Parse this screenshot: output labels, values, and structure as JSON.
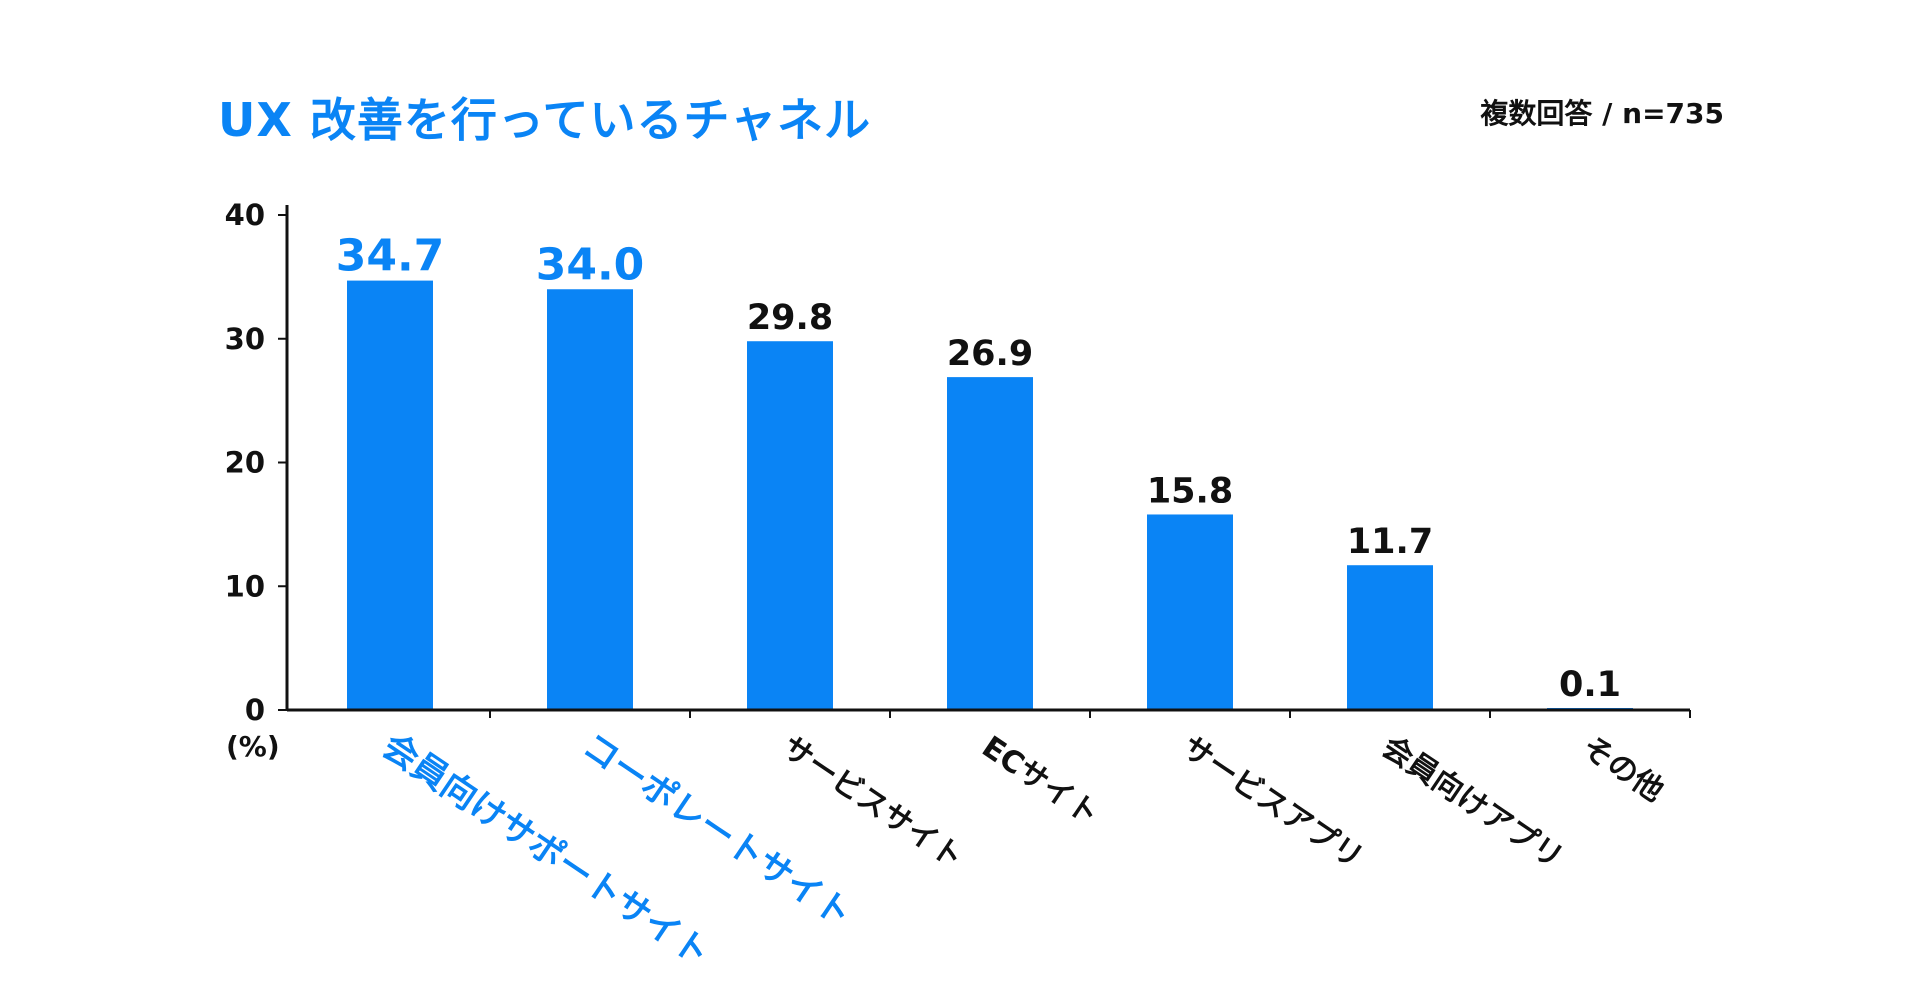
{
  "title": "UX 改善を行っているチャネル",
  "note": "複数回答 / n=735",
  "unit_label": "(%)",
  "colors": {
    "bar": "#0a84f5",
    "highlight": "#0a84f5",
    "text": "#111111",
    "axis": "#111111"
  },
  "chart_data": {
    "type": "bar",
    "title": "UX 改善を行っているチャネル",
    "categories": [
      "会員向けサポートサイト",
      "コーポレートサイト",
      "サービスサイト",
      "ECサイト",
      "サービスアプリ",
      "会員向けアプリ",
      "その他"
    ],
    "values": [
      34.7,
      34.0,
      29.8,
      26.9,
      15.8,
      11.7,
      0.1
    ],
    "value_labels": [
      "34.7",
      "34.0",
      "29.8",
      "26.9",
      "15.8",
      "11.7",
      "0.1"
    ],
    "highlighted": [
      0,
      1
    ],
    "ylim": [
      0,
      40
    ],
    "yticks": [
      0,
      10,
      20,
      30,
      40
    ],
    "ylabel": "(%)",
    "xlabel": "",
    "grid": false,
    "legend": "none"
  }
}
